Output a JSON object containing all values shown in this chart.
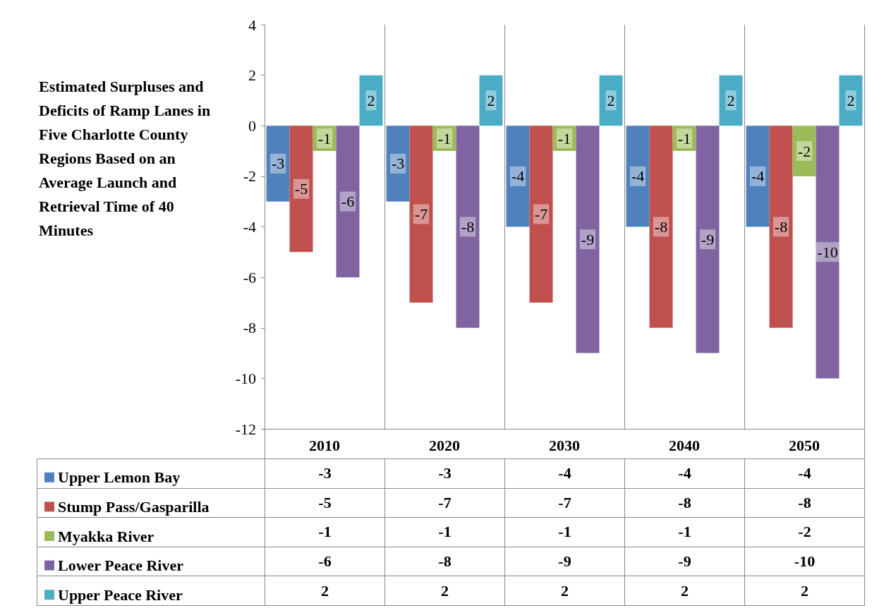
{
  "chart_data": {
    "type": "bar",
    "title": "Estimated Surpluses and Deficits of Ramp Lanes in Five Charlotte County Regions Based on an Average Launch and Retrieval Time of 40 Minutes",
    "categories": [
      "2010",
      "2020",
      "2030",
      "2040",
      "2050"
    ],
    "series": [
      {
        "name": "Upper Lemon Bay",
        "color": "#4f81bd",
        "values": [
          -3,
          -3,
          -4,
          -4,
          -4
        ],
        "value_labels": [
          "-3",
          "-3",
          "-4",
          "-4",
          "-4"
        ]
      },
      {
        "name": "Stump Pass/Gasparilla",
        "color": "#c0504d",
        "values": [
          -5,
          -7,
          -7,
          -8,
          -8
        ],
        "value_labels": [
          "-5",
          "-7",
          "-7",
          "-8",
          "-8"
        ]
      },
      {
        "name": "Myakka River",
        "color": "#9bbb59",
        "values": [
          -1,
          -1,
          -1,
          -1,
          -2
        ],
        "value_labels": [
          "-1",
          "-1",
          "-1",
          "-1",
          "-2"
        ]
      },
      {
        "name": "Lower Peace River",
        "color": "#8064a2",
        "values": [
          -6,
          -8,
          -9,
          -9,
          -10
        ],
        "value_labels": [
          "-6",
          "-8",
          "-9",
          "-9",
          "-10"
        ]
      },
      {
        "name": "Upper Peace River",
        "color": "#4bacc6",
        "values": [
          2,
          2,
          2,
          2,
          2
        ],
        "value_labels": [
          "2",
          "2",
          "2",
          "2",
          "2"
        ]
      }
    ],
    "ylim": [
      -12,
      4
    ],
    "yticks": [
      -12,
      -10,
      -8,
      -6,
      -4,
      -2,
      0,
      2,
      4
    ],
    "grid": "x",
    "legend": "bottom",
    "data_labels": true
  }
}
